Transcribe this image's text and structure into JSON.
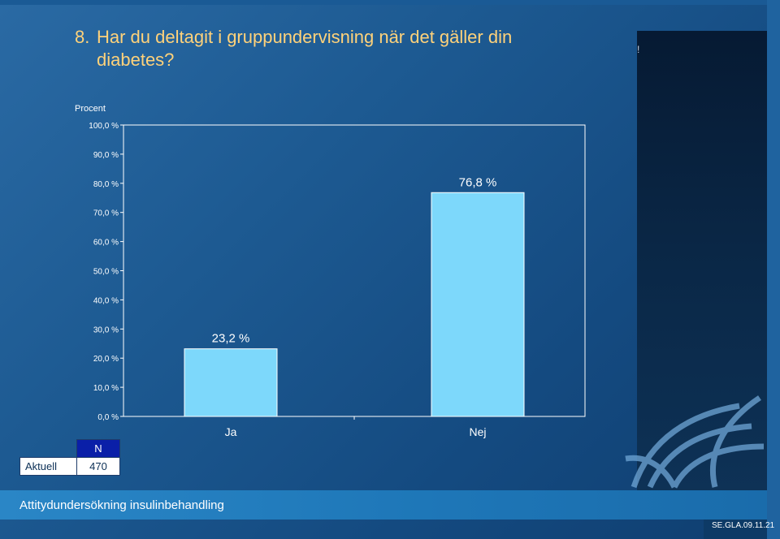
{
  "slide": {
    "title_number": "8.",
    "title_line1": "Har du deltagit i gruppundervisning när det gäller din",
    "title_line2": "diabetes?",
    "side_panel_mark": "!",
    "footer": "Attitydundersökning insulinbehandling",
    "code": "SE.GLA.09.11.21"
  },
  "n_table": {
    "header": "N",
    "row_label": "Aktuell",
    "value": "470"
  },
  "chart_data": {
    "type": "bar",
    "ylabel": "Procent",
    "categories": [
      "Ja",
      "Nej"
    ],
    "values": [
      23.2,
      76.8
    ],
    "data_labels": [
      "23,2 %",
      "76,8 %"
    ],
    "ylim": [
      0,
      100
    ],
    "yticks": [
      0,
      10,
      20,
      30,
      40,
      50,
      60,
      70,
      80,
      90,
      100
    ],
    "ytick_labels": [
      "0,0 %",
      "10,0 %",
      "20,0 %",
      "30,0 %",
      "40,0 %",
      "50,0 %",
      "60,0 %",
      "70,0 %",
      "80,0 %",
      "90,0 %",
      "100,0 %"
    ],
    "grid": false,
    "bar_color": "#7dd8fb",
    "plot_border_color": "#ffffff"
  }
}
